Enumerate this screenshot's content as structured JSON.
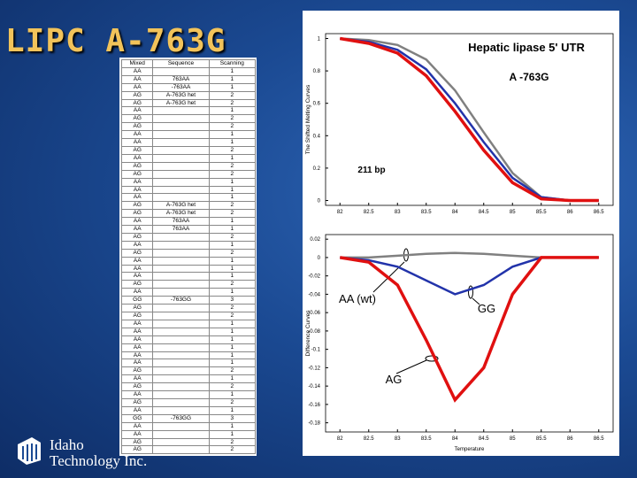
{
  "slide": {
    "title": "LIPC A-763G",
    "logo": {
      "line1": "Idaho",
      "line2": "Technology Inc."
    }
  },
  "table": {
    "header": [
      "Mixed",
      "Sequence",
      "Scanning"
    ],
    "rows": [
      [
        "AA",
        null,
        "1"
      ],
      [
        "AA",
        "763AA",
        "1"
      ],
      [
        "AA",
        "-763AA",
        "1"
      ],
      [
        "AG",
        "A-763G het",
        "2"
      ],
      [
        "AG",
        "A-763G het",
        "2"
      ],
      [
        "AA",
        null,
        "1"
      ],
      [
        "AG",
        null,
        "2"
      ],
      [
        "AG",
        null,
        "2"
      ],
      [
        "AA",
        null,
        "1"
      ],
      [
        "AA",
        null,
        "1"
      ],
      [
        "AG",
        null,
        "2"
      ],
      [
        "AA",
        null,
        "1"
      ],
      [
        "AG",
        null,
        "2"
      ],
      [
        "AG",
        null,
        "2"
      ],
      [
        "AA",
        null,
        "1"
      ],
      [
        "AA",
        null,
        "1"
      ],
      [
        "AA",
        null,
        "1"
      ],
      [
        "AG",
        "A-763G het",
        "2"
      ],
      [
        "AG",
        "A-763G het",
        "2"
      ],
      [
        "AA",
        "763AA",
        "1"
      ],
      [
        "AA",
        "763AA",
        "1"
      ],
      [
        "AG",
        null,
        "2"
      ],
      [
        "AA",
        null,
        "1"
      ],
      [
        "AG",
        null,
        "2"
      ],
      [
        "AA",
        null,
        "1"
      ],
      [
        "AA",
        null,
        "1"
      ],
      [
        "AA",
        null,
        "1"
      ],
      [
        "AG",
        null,
        "2"
      ],
      [
        "AA",
        null,
        "1"
      ],
      [
        "GG",
        "-763GG",
        "3"
      ],
      [
        "AG",
        null,
        "2"
      ],
      [
        "AG",
        null,
        "2"
      ],
      [
        "AA",
        null,
        "1"
      ],
      [
        "AA",
        null,
        "1"
      ],
      [
        "AA",
        null,
        "1"
      ],
      [
        "AA",
        null,
        "1"
      ],
      [
        "AA",
        null,
        "1"
      ],
      [
        "AA",
        null,
        "1"
      ],
      [
        "AG",
        null,
        "2"
      ],
      [
        "AA",
        null,
        "1"
      ],
      [
        "AG",
        null,
        "2"
      ],
      [
        "AA",
        null,
        "1"
      ],
      [
        "AG",
        null,
        "2"
      ],
      [
        "AA",
        null,
        "1"
      ],
      [
        "GG",
        "-763GG",
        "3"
      ],
      [
        "AA",
        null,
        "1"
      ],
      [
        "AA",
        null,
        "1"
      ],
      [
        "AG",
        null,
        "2"
      ],
      [
        "AG",
        null,
        "2"
      ]
    ]
  },
  "chart_data": [
    {
      "type": "line",
      "title": "Hepatic lipase 5' UTR",
      "subtitle": "A -763G",
      "annotations": [
        "211 bp"
      ],
      "y_label": "The Shifted Melting Curves",
      "x": [
        82,
        82.5,
        83,
        83.5,
        84,
        84.5,
        85,
        85.5,
        86,
        86.5
      ],
      "series": [
        {
          "color": "#808080",
          "values": [
            1,
            0.99,
            0.96,
            0.87,
            0.68,
            0.42,
            0.17,
            0.02,
            0,
            0
          ]
        },
        {
          "color": "#2233aa",
          "values": [
            1,
            0.98,
            0.93,
            0.81,
            0.6,
            0.36,
            0.14,
            0.02,
            0,
            0
          ]
        },
        {
          "color": "#e01010",
          "values": [
            1,
            0.97,
            0.91,
            0.77,
            0.55,
            0.31,
            0.11,
            0.01,
            0,
            0
          ]
        }
      ],
      "xlim": [
        81.75,
        86.75
      ],
      "ylim": [
        -0.03,
        1.03
      ],
      "xticks": [
        82,
        82.5,
        83,
        83.5,
        84,
        84.5,
        85,
        85.5,
        86,
        86.5
      ],
      "yticks": [
        0,
        0.2,
        0.4,
        0.6,
        0.8,
        1
      ]
    },
    {
      "type": "line",
      "x_label": "Temperature",
      "y_label": "Difference Curves",
      "annotations": [
        "AA (wt)",
        "GG",
        "AG"
      ],
      "x": [
        82,
        82.5,
        83,
        83.5,
        84,
        84.5,
        85,
        85.5,
        86,
        86.5
      ],
      "series": [
        {
          "color": "#808080",
          "values": [
            0,
            0,
            0.002,
            0.004,
            0.005,
            0.004,
            0.002,
            0,
            0,
            0
          ]
        },
        {
          "color": "#2233aa",
          "values": [
            0,
            -0.003,
            -0.01,
            -0.025,
            -0.04,
            -0.03,
            -0.01,
            0,
            0,
            0
          ]
        },
        {
          "color": "#e01010",
          "values": [
            0,
            -0.005,
            -0.03,
            -0.09,
            -0.155,
            -0.12,
            -0.04,
            0,
            0,
            0
          ]
        }
      ],
      "xlim": [
        81.75,
        86.75
      ],
      "ylim": [
        -0.19,
        0.025
      ],
      "xticks": [
        82,
        82.5,
        83,
        83.5,
        84,
        84.5,
        85,
        85.5,
        86,
        86.5
      ],
      "yticks": [
        0.02,
        0,
        -0.02,
        -0.04,
        -0.06,
        -0.08,
        -0.1,
        -0.12,
        -0.14,
        -0.16,
        -0.18
      ]
    }
  ]
}
